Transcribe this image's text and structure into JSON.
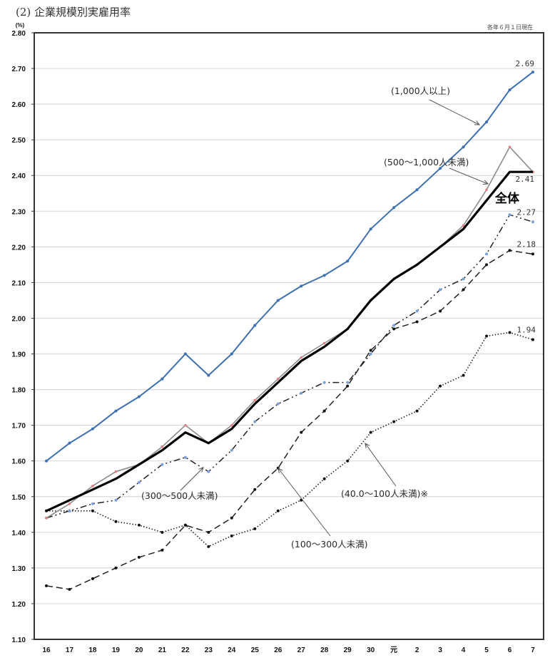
{
  "chart_data": {
    "type": "line",
    "title": "(2) 企業規模別実雇用率",
    "note": "各年６月１日現在",
    "ylabel": "(%)",
    "xlabel": "",
    "ylim": [
      1.1,
      2.8
    ],
    "ytick_step": 0.1,
    "yticks": [
      "1.10",
      "1.20",
      "1.30",
      "1.40",
      "1.50",
      "1.60",
      "1.70",
      "1.80",
      "1.90",
      "2.00",
      "2.10",
      "2.20",
      "2.30",
      "2.40",
      "2.50",
      "2.60",
      "2.70",
      "2.80"
    ],
    "grid": true,
    "categories": [
      "16",
      "17",
      "18",
      "19",
      "20",
      "21",
      "22",
      "23",
      "24",
      "25",
      "26",
      "27",
      "28",
      "29",
      "30",
      "元",
      "2",
      "3",
      "4",
      "5",
      "6",
      "7"
    ],
    "series": [
      {
        "name": "(1,000人以上)",
        "key": "s1000",
        "color": "#3e6fb0",
        "style": "solid",
        "values": [
          1.6,
          1.65,
          1.69,
          1.74,
          1.78,
          1.83,
          1.9,
          1.84,
          1.9,
          1.98,
          2.05,
          2.09,
          2.12,
          2.16,
          2.25,
          2.31,
          2.36,
          2.42,
          2.48,
          2.55,
          2.64,
          2.69
        ],
        "end_label": "2.69"
      },
      {
        "name": "(500～1,000人未満)",
        "key": "s500",
        "color": "#8a8a8a",
        "style": "solid",
        "values": [
          1.44,
          1.48,
          1.53,
          1.57,
          1.59,
          1.64,
          1.7,
          1.65,
          1.7,
          1.77,
          1.83,
          1.89,
          1.93,
          1.97,
          2.05,
          2.11,
          2.15,
          2.2,
          2.26,
          2.36,
          2.48,
          2.41
        ],
        "end_label": ""
      },
      {
        "name": "全体",
        "key": "total",
        "color": "#000000",
        "style": "thick",
        "values": [
          1.46,
          1.49,
          1.52,
          1.55,
          1.59,
          1.63,
          1.68,
          1.65,
          1.69,
          1.76,
          1.82,
          1.88,
          1.92,
          1.97,
          2.05,
          2.11,
          2.15,
          2.2,
          2.25,
          2.33,
          2.41,
          2.41
        ],
        "end_label": "2.41"
      },
      {
        "name": "(300～500人未満)",
        "key": "s300",
        "color": "#222222",
        "style": "dashdot",
        "values": [
          1.44,
          1.46,
          1.48,
          1.49,
          1.54,
          1.59,
          1.61,
          1.57,
          1.63,
          1.71,
          1.76,
          1.79,
          1.82,
          1.82,
          1.9,
          1.98,
          2.02,
          2.08,
          2.11,
          2.18,
          2.29,
          2.27
        ],
        "end_label": "2.27"
      },
      {
        "name": "(100～300人未満)",
        "key": "s100",
        "color": "#222222",
        "style": "dashed",
        "values": [
          1.25,
          1.24,
          1.27,
          1.3,
          1.33,
          1.35,
          1.42,
          1.4,
          1.44,
          1.52,
          1.58,
          1.68,
          1.74,
          1.81,
          1.91,
          1.97,
          1.99,
          2.02,
          2.08,
          2.15,
          2.19,
          2.18
        ],
        "end_label": "2.18"
      },
      {
        "name": "(40.0～100人未満)※",
        "key": "s40",
        "color": "#222222",
        "style": "dotted",
        "values": [
          1.46,
          1.46,
          1.46,
          1.43,
          1.42,
          1.4,
          1.42,
          1.36,
          1.39,
          1.41,
          1.46,
          1.49,
          1.55,
          1.6,
          1.68,
          1.71,
          1.74,
          1.81,
          1.84,
          1.95,
          1.96,
          1.94
        ],
        "end_label": "1.94"
      }
    ],
    "annotations": {
      "total_label": "全体"
    }
  }
}
